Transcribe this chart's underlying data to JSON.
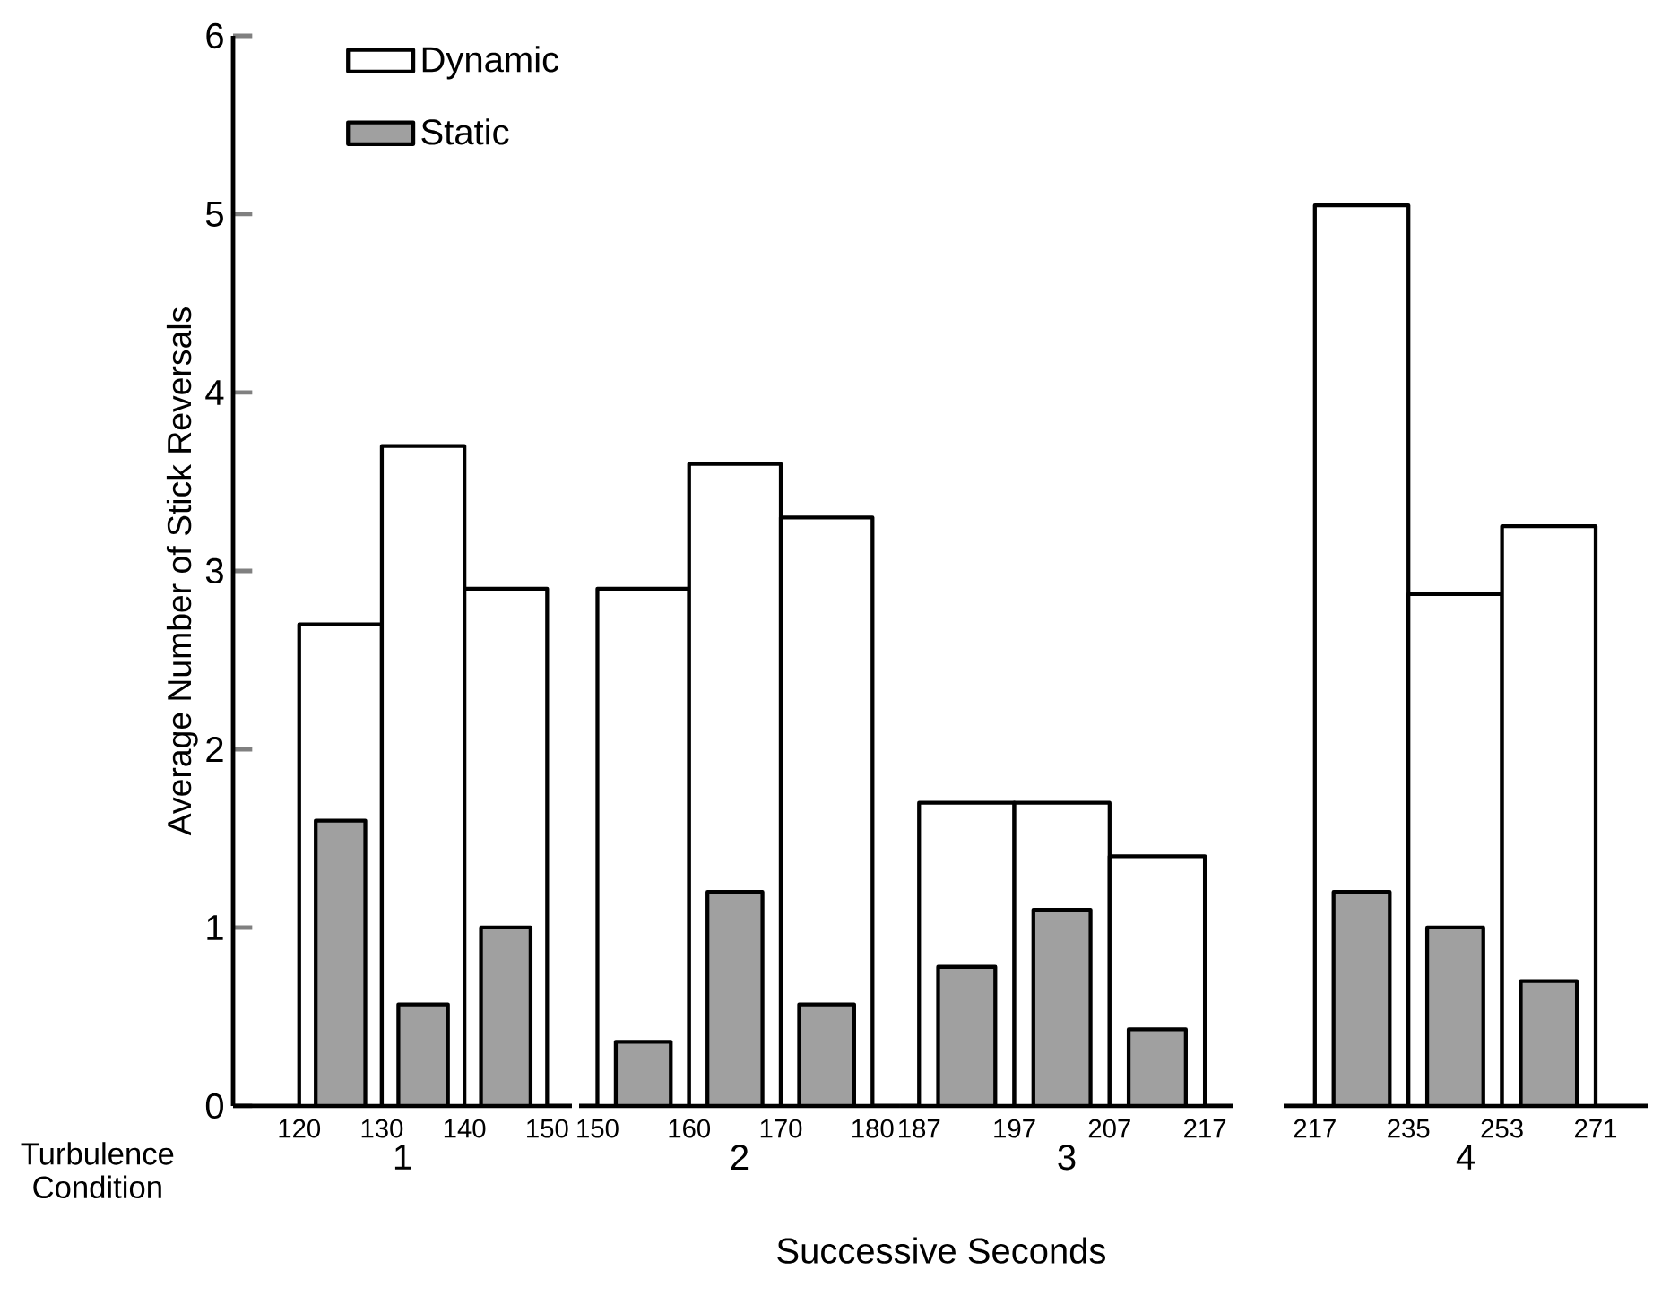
{
  "chart_data": [
    {
      "type": "bar",
      "xlabel": "1",
      "ylabel": "Average Number of Stick Reversals",
      "x": [
        125,
        135,
        145
      ],
      "xlim": [
        112,
        153
      ],
      "xticks": [
        120,
        130,
        140,
        150
      ],
      "ylim": [
        0,
        6
      ],
      "yticks": [
        0,
        1,
        2,
        3,
        4,
        5,
        6
      ],
      "legend": "top right",
      "annotations": [
        "Turbulence Condition",
        "Successive Seconds"
      ],
      "series": [
        {
          "name": "Dynamic",
          "color": "#ffffff",
          "values": [
            2.7,
            3.7,
            2.9
          ]
        },
        {
          "name": "Static",
          "color": "#a0a0a0",
          "values": [
            1.6,
            0.57,
            1.0
          ]
        }
      ]
    },
    {
      "type": "bar",
      "xlabel": "2",
      "x": [
        155,
        165,
        175
      ],
      "xlim": [
        148,
        183
      ],
      "xticks": [
        150,
        160,
        170,
        180
      ],
      "ylim": [
        0,
        6
      ],
      "tick_labels": "x",
      "series": [
        {
          "color": "#ffffff",
          "values": [
            2.9,
            3.6,
            3.3
          ]
        },
        {
          "color": "#a0a0a0",
          "values": [
            0.36,
            1.2,
            0.57
          ]
        }
      ]
    },
    {
      "type": "bar",
      "xlabel": "3",
      "x": [
        192,
        202,
        212
      ],
      "xlim": [
        185,
        220
      ],
      "xticks": [
        187,
        197,
        207,
        217
      ],
      "ylim": [
        0,
        6
      ],
      "tick_labels": "x",
      "series": [
        {
          "color": "#ffffff",
          "values": [
            1.7,
            1.7,
            1.4
          ]
        },
        {
          "color": "#a0a0a0",
          "values": [
            0.78,
            1.1,
            0.43
          ]
        }
      ]
    },
    {
      "type": "bar",
      "xlabel": "4",
      "x": [
        226,
        244,
        262
      ],
      "xlim": [
        211,
        281
      ],
      "xticks": [
        217,
        235,
        253,
        271
      ],
      "ylim": [
        0,
        6
      ],
      "tick_labels": "x",
      "series": [
        {
          "color": "#ffffff",
          "values": [
            5.05,
            2.87,
            3.25
          ]
        },
        {
          "color": "#a0a0a0",
          "values": [
            1.2,
            1.0,
            0.7
          ]
        }
      ]
    }
  ]
}
